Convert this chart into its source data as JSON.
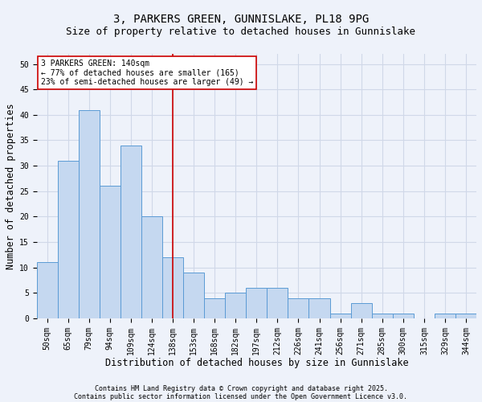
{
  "title1": "3, PARKERS GREEN, GUNNISLAKE, PL18 9PG",
  "title2": "Size of property relative to detached houses in Gunnislake",
  "xlabel": "Distribution of detached houses by size in Gunnislake",
  "ylabel": "Number of detached properties",
  "categories": [
    "50sqm",
    "65sqm",
    "79sqm",
    "94sqm",
    "109sqm",
    "124sqm",
    "138sqm",
    "153sqm",
    "168sqm",
    "182sqm",
    "197sqm",
    "212sqm",
    "226sqm",
    "241sqm",
    "256sqm",
    "271sqm",
    "285sqm",
    "300sqm",
    "315sqm",
    "329sqm",
    "344sqm"
  ],
  "values": [
    11,
    31,
    41,
    26,
    34,
    20,
    12,
    9,
    4,
    5,
    6,
    6,
    4,
    4,
    1,
    3,
    1,
    1,
    0,
    1,
    1
  ],
  "bar_color": "#c5d8f0",
  "bar_edge_color": "#5b9bd5",
  "vline_x_idx": 6,
  "vline_color": "#cc0000",
  "annotation_text": "3 PARKERS GREEN: 140sqm\n← 77% of detached houses are smaller (165)\n23% of semi-detached houses are larger (49) →",
  "annotation_box_color": "#ffffff",
  "annotation_box_edge": "#cc0000",
  "grid_color": "#d0d8e8",
  "background_color": "#eef2fa",
  "ylim": [
    0,
    52
  ],
  "yticks": [
    0,
    5,
    10,
    15,
    20,
    25,
    30,
    35,
    40,
    45,
    50
  ],
  "footer1": "Contains HM Land Registry data © Crown copyright and database right 2025.",
  "footer2": "Contains public sector information licensed under the Open Government Licence v3.0.",
  "title_fontsize": 10,
  "subtitle_fontsize": 9,
  "tick_fontsize": 7,
  "label_fontsize": 8.5,
  "footer_fontsize": 6
}
